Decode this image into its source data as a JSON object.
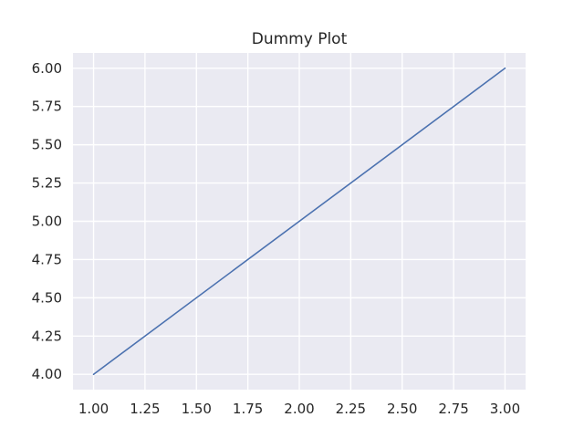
{
  "chart_data": {
    "type": "line",
    "title": "Dummy Plot",
    "xlabel": "",
    "ylabel": "",
    "x": [
      1,
      2,
      3
    ],
    "series": [
      {
        "values": [
          4,
          5,
          6
        ]
      }
    ],
    "xlim": [
      0.9,
      3.1
    ],
    "ylim": [
      3.9,
      6.1
    ],
    "xticks": [
      1.0,
      1.25,
      1.5,
      1.75,
      2.0,
      2.25,
      2.5,
      2.75,
      3.0
    ],
    "xtick_labels": [
      "1.00",
      "1.25",
      "1.50",
      "1.75",
      "2.00",
      "2.25",
      "2.50",
      "2.75",
      "3.00"
    ],
    "yticks": [
      4.0,
      4.25,
      4.5,
      4.75,
      5.0,
      5.25,
      5.5,
      5.75,
      6.0
    ],
    "ytick_labels": [
      "4.00",
      "4.25",
      "4.50",
      "4.75",
      "5.00",
      "5.25",
      "5.50",
      "5.75",
      "6.00"
    ],
    "grid": true,
    "legend": "none",
    "colors": {
      "background": "#eaeaf2",
      "grid": "#ffffff",
      "line": "#4c72b0",
      "text": "#262626"
    }
  }
}
